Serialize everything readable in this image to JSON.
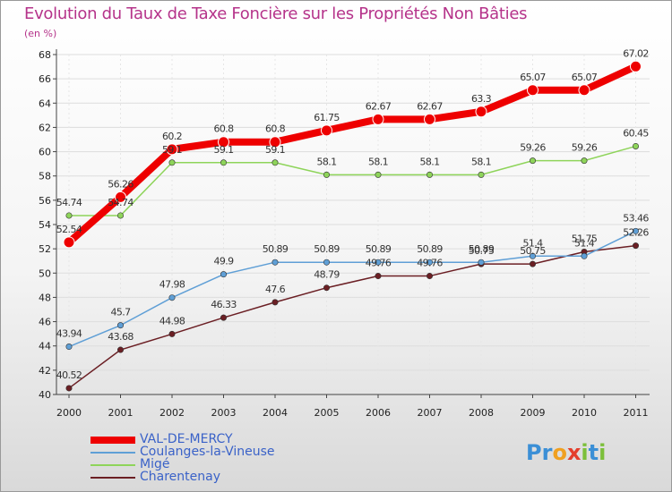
{
  "header": {
    "title": "Evolution du Taux de Taxe Foncière sur les Propriétés Non Bâties",
    "unit": "(en %)"
  },
  "colors": {
    "title": "#b5338a",
    "legend_text": "#3a62c8",
    "grid": "#dddddd",
    "axis": "#444444"
  },
  "logo": {
    "text": "Proxiti",
    "letters": [
      "P",
      "r",
      "o",
      "x",
      "i",
      "t",
      "i"
    ],
    "letter_colors": [
      "#3b8fd6",
      "#3b8fd6",
      "#f0a020",
      "#e43e2b",
      "#7cbf3a",
      "#3b8fd6",
      "#7cbf3a"
    ]
  },
  "chart_data": {
    "type": "line",
    "title": "Evolution du Taux de Taxe Foncière sur les Propriétés Non Bâties",
    "ylabel": "(en %)",
    "xlabel": "",
    "categories": [
      "2000",
      "2001",
      "2002",
      "2003",
      "2004",
      "2005",
      "2006",
      "2007",
      "2008",
      "2009",
      "2010",
      "2011"
    ],
    "ylim": [
      40,
      68
    ],
    "yticks": [
      "40",
      "42",
      "44",
      "46",
      "48",
      "50",
      "52",
      "54",
      "56",
      "58",
      "60",
      "62",
      "64",
      "66",
      "68"
    ],
    "grid": true,
    "series": [
      {
        "name": "VAL-DE-MERCY",
        "color": "#ee0000",
        "values": [
          52.54,
          56.26,
          60.2,
          60.8,
          60.8,
          61.75,
          62.67,
          62.67,
          63.3,
          65.07,
          65.07,
          67.02
        ],
        "labels": [
          "52.54",
          "56.26",
          "60.2",
          "60.8",
          "60.8",
          "61.75",
          "62.67",
          "62.67",
          "63.3",
          "65.07",
          "65.07",
          "67.02"
        ]
      },
      {
        "name": "Coulanges-la-Vineuse",
        "color": "#5f9fd6",
        "values": [
          43.94,
          45.7,
          47.98,
          49.9,
          50.89,
          50.89,
          50.89,
          50.89,
          50.89,
          51.4,
          51.4,
          53.46
        ],
        "labels": [
          "43.94",
          "45.7",
          "47.98",
          "49.9",
          "50.89",
          "50.89",
          "50.89",
          "50.89",
          "50.89",
          "51.4",
          "51.4",
          "53.46"
        ]
      },
      {
        "name": "Migé",
        "color": "#8ed45a",
        "values": [
          54.74,
          54.74,
          59.1,
          59.1,
          59.1,
          58.1,
          58.1,
          58.1,
          58.1,
          59.26,
          59.26,
          60.45
        ],
        "labels": [
          "54.74",
          "54.74",
          "59.1",
          "59.1",
          "59.1",
          "58.1",
          "58.1",
          "58.1",
          "58.1",
          "59.26",
          "59.26",
          "60.45"
        ]
      },
      {
        "name": "Charentenay",
        "color": "#6b1f24",
        "values": [
          40.52,
          43.68,
          44.98,
          46.33,
          47.6,
          48.79,
          49.76,
          49.76,
          50.75,
          50.75,
          51.75,
          52.26
        ],
        "labels": [
          "40.52",
          "43.68",
          "44.98",
          "46.33",
          "47.6",
          "48.79",
          "49.76",
          "49.76",
          "50.75",
          "50.75",
          "51.75",
          "52.26"
        ]
      }
    ]
  }
}
